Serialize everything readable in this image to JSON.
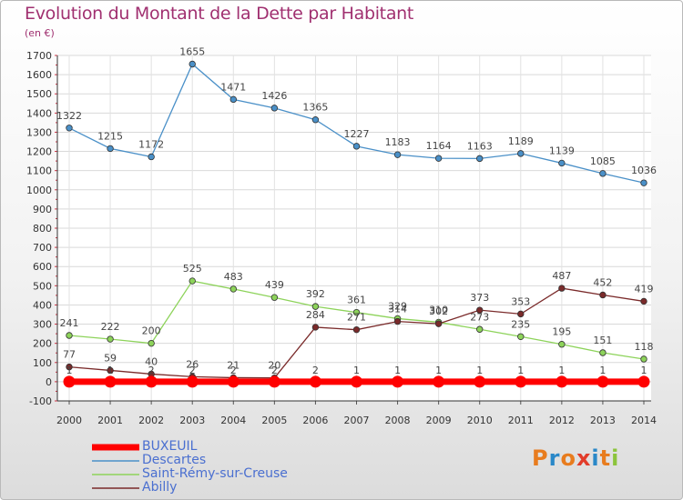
{
  "header": {
    "title": "Evolution du Montant de la Dette par Habitant",
    "unit": "(en €)"
  },
  "logo": {
    "letters": [
      "P",
      "r",
      "o",
      "x",
      "i",
      "t",
      "i"
    ],
    "colors": [
      "#e87c1e",
      "#2a88c8",
      "#e87c1e",
      "#e23c2a",
      "#2a88c8",
      "#e87c1e",
      "#8cc43c"
    ]
  },
  "chart_data": {
    "type": "line",
    "title": "Evolution du Montant de la Dette par Habitant",
    "ylabel": "(en €)",
    "xlabel": "",
    "x": [
      "2000",
      "2001",
      "2002",
      "2003",
      "2004",
      "2005",
      "2006",
      "2007",
      "2008",
      "2009",
      "2010",
      "2011",
      "2012",
      "2013",
      "2014"
    ],
    "ylim": [
      -100,
      1700
    ],
    "yticks": [
      -100,
      0,
      100,
      200,
      300,
      400,
      500,
      600,
      700,
      800,
      900,
      1000,
      1100,
      1200,
      1300,
      1400,
      1500,
      1600,
      1700
    ],
    "grid": true,
    "legend_position": "bottom",
    "series": [
      {
        "name": "BUXEUIL",
        "color": "#ff0000",
        "values": [
          0,
          0,
          0,
          0,
          0,
          0,
          0,
          0,
          0,
          0,
          0,
          0,
          0,
          0,
          0
        ],
        "labels": []
      },
      {
        "name": "Descartes",
        "color": "#4a90c8",
        "values": [
          1322,
          1215,
          1172,
          1655,
          1471,
          1426,
          1365,
          1227,
          1183,
          1164,
          1163,
          1189,
          1139,
          1085,
          1036
        ],
        "labels": [
          "1322",
          "1215",
          "1172",
          "1655",
          "1471",
          "1426",
          "1365",
          "1227",
          "1183",
          "1164",
          "1163",
          "1189",
          "1139",
          "1085",
          "1036"
        ]
      },
      {
        "name": "Saint-Rémy-sur-Creuse",
        "color": "#8dd35a",
        "values": [
          241,
          222,
          200,
          525,
          483,
          439,
          392,
          361,
          329,
          310,
          273,
          235,
          195,
          151,
          118
        ],
        "labels": [
          "241",
          "222",
          "200",
          "525",
          "483",
          "439",
          "392",
          "361",
          "329",
          "310",
          "273",
          "235",
          "195",
          "151",
          "118"
        ]
      },
      {
        "name": "Abilly",
        "color": "#7a2a2a",
        "values": [
          77,
          59,
          40,
          26,
          21,
          20,
          284,
          271,
          314,
          302,
          373,
          353,
          487,
          452,
          419
        ],
        "labels": [
          "77",
          "59",
          "40",
          "26",
          "21",
          "20",
          "284",
          "271",
          "314",
          "302",
          "373",
          "353",
          "487",
          "452",
          "419"
        ]
      }
    ],
    "baseline_labels": [
      "1",
      "1",
      "2",
      "2",
      "2",
      "2",
      "2",
      "1",
      "1",
      "1",
      "1",
      "1",
      "1",
      "1",
      "1"
    ]
  }
}
